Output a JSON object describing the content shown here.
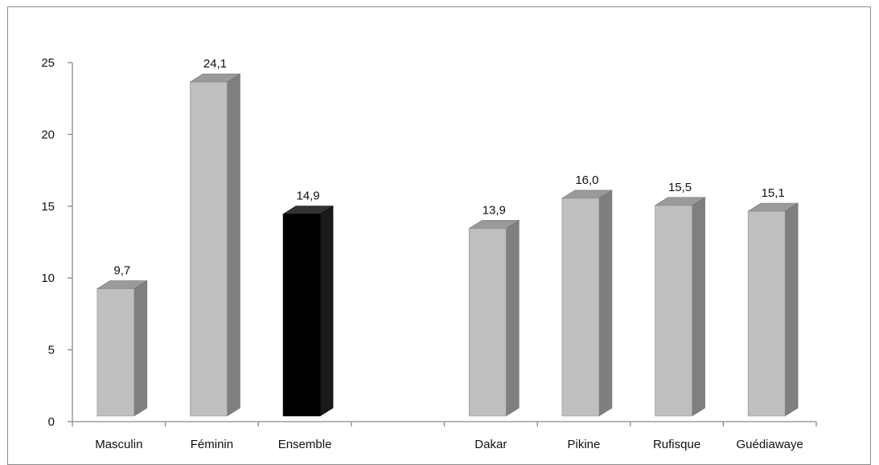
{
  "chart_data": {
    "type": "bar",
    "categories": [
      "Masculin",
      "Féminin",
      "Ensemble",
      "",
      "Dakar",
      "Pikine",
      "Rufisque",
      "Guédiawaye"
    ],
    "values": [
      9.7,
      24.1,
      14.9,
      null,
      13.9,
      16.0,
      15.5,
      15.1
    ],
    "value_labels": [
      "9,7",
      "24,1",
      "14,9",
      "",
      "13,9",
      "16,0",
      "15,5",
      "15,1"
    ],
    "highlight_category": "Ensemble",
    "title": "",
    "xlabel": "",
    "ylabel": "",
    "ylim": [
      0,
      25
    ],
    "yticks": [
      "0",
      "5",
      "10",
      "15",
      "20",
      "25"
    ],
    "grid": false,
    "legend": "none",
    "style": "3d-bar",
    "colors": {
      "bar_front": "#bfbfbf",
      "bar_side": "#7f7f7f",
      "bar_top": "#9a9a9a",
      "highlight_front": "#000000",
      "highlight_side": "#1a1a1a",
      "highlight_top": "#333333"
    }
  }
}
